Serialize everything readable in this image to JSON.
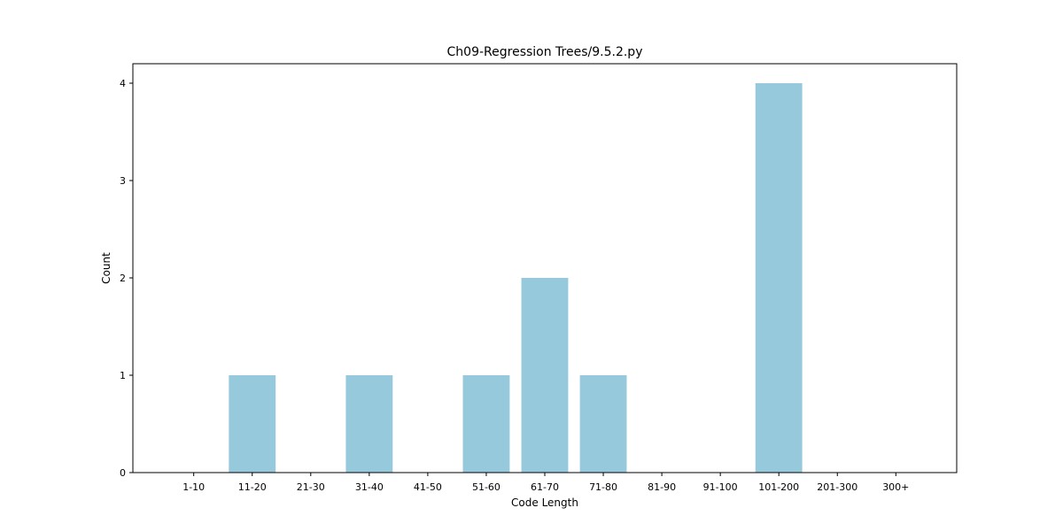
{
  "chart_data": {
    "type": "bar",
    "title": "Ch09-Regression Trees/9.5.2.py",
    "xlabel": "Code Length",
    "ylabel": "Count",
    "categories": [
      "1-10",
      "11-20",
      "21-30",
      "31-40",
      "41-50",
      "51-60",
      "61-70",
      "71-80",
      "81-90",
      "91-100",
      "101-200",
      "201-300",
      "300+"
    ],
    "values": [
      0,
      1,
      0,
      1,
      0,
      1,
      2,
      1,
      0,
      0,
      4,
      0,
      0
    ],
    "ylim": [
      0,
      4.2
    ],
    "yticks": [
      0,
      1,
      2,
      3,
      4
    ],
    "grid": false,
    "bar_color": "#96c9dc"
  }
}
